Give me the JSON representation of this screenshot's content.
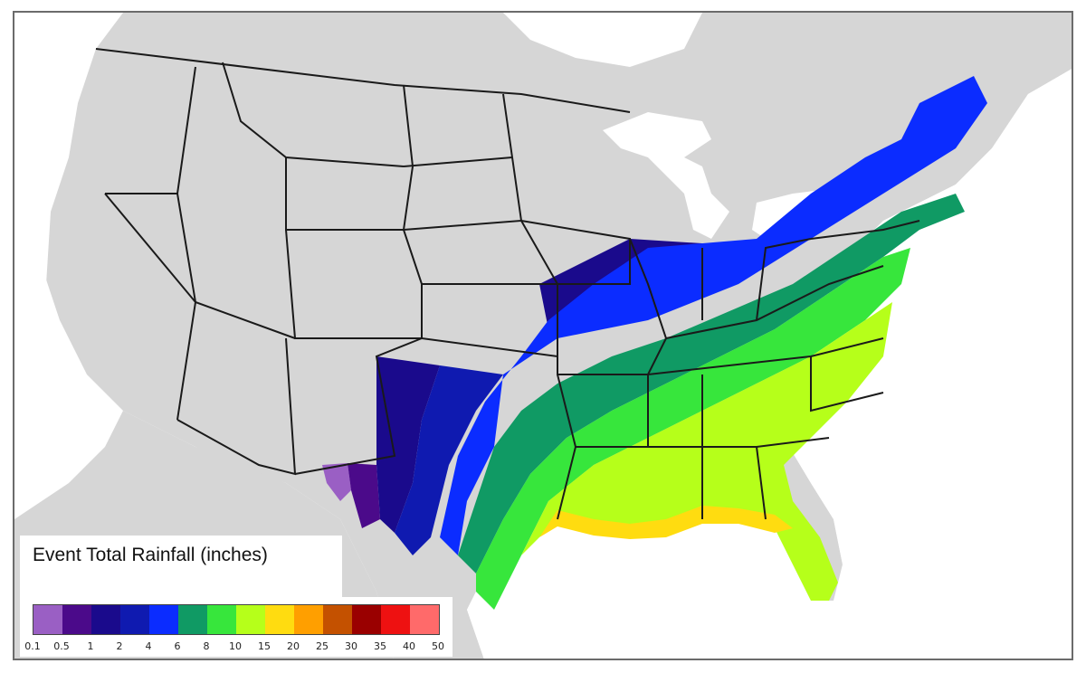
{
  "legend": {
    "title": "Event Total Rainfall (inches)",
    "ticks": [
      "0.1",
      "0.5",
      "1",
      "2",
      "4",
      "6",
      "8",
      "10",
      "15",
      "20",
      "25",
      "30",
      "35",
      "40",
      "50"
    ],
    "colors": [
      "#9a5fc4",
      "#4b0a8a",
      "#1a0a8c",
      "#0f1ab0",
      "#0b2cff",
      "#109a64",
      "#37e63c",
      "#b6ff1a",
      "#ffdc10",
      "#ff9f00",
      "#c45100",
      "#9a0000",
      "#ee1111",
      "#ff6a6a"
    ]
  },
  "map": {
    "land_color": "#d6d6d6",
    "water_color": "#ffffff",
    "border_color": "#1a1a1a"
  }
}
